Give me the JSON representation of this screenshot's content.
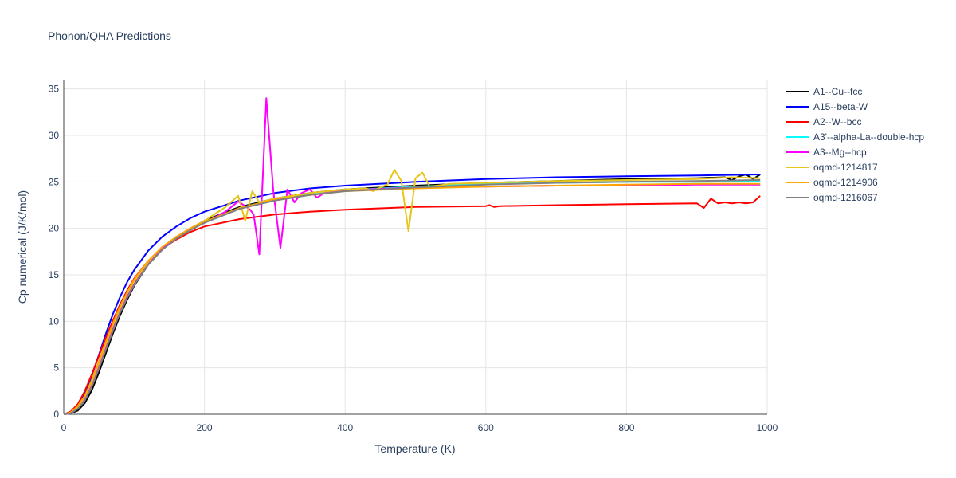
{
  "chart_data": {
    "type": "line",
    "title": "Phonon/QHA Predictions",
    "xlabel": "Temperature (K)",
    "ylabel": "Cp numerical (J/K/mol)",
    "xlim": [
      0,
      1000
    ],
    "ylim": [
      0,
      36
    ],
    "x_ticks": [
      0,
      200,
      400,
      600,
      800,
      1000
    ],
    "y_ticks": [
      0,
      5,
      10,
      15,
      20,
      25,
      30,
      35
    ],
    "grid": true,
    "legend_position": "right",
    "series": [
      {
        "name": "A1--Cu--fcc",
        "color": "#000000",
        "points": [
          [
            0,
            0
          ],
          [
            10,
            0.1
          ],
          [
            20,
            0.4
          ],
          [
            30,
            1.2
          ],
          [
            40,
            2.6
          ],
          [
            50,
            4.5
          ],
          [
            60,
            6.6
          ],
          [
            70,
            8.7
          ],
          [
            80,
            10.6
          ],
          [
            90,
            12.3
          ],
          [
            100,
            13.8
          ],
          [
            120,
            16.1
          ],
          [
            140,
            17.7
          ],
          [
            160,
            19
          ],
          [
            180,
            20
          ],
          [
            200,
            20.8
          ],
          [
            225,
            21.6
          ],
          [
            250,
            22.3
          ],
          [
            300,
            23.2
          ],
          [
            350,
            23.8
          ],
          [
            400,
            24.2
          ],
          [
            500,
            24.6
          ],
          [
            600,
            24.9
          ],
          [
            700,
            25.1
          ],
          [
            800,
            25.3
          ],
          [
            900,
            25.4
          ],
          [
            940,
            25.5
          ],
          [
            950,
            25.2
          ],
          [
            960,
            25.6
          ],
          [
            970,
            25.8
          ],
          [
            980,
            25.3
          ],
          [
            990,
            25.8
          ]
        ]
      },
      {
        "name": "A15--beta-W",
        "color": "#0000ff",
        "points": [
          [
            0,
            0
          ],
          [
            10,
            0.2
          ],
          [
            20,
            0.9
          ],
          [
            30,
            2.2
          ],
          [
            40,
            4.2
          ],
          [
            50,
            6.4
          ],
          [
            60,
            8.7
          ],
          [
            70,
            10.8
          ],
          [
            80,
            12.6
          ],
          [
            90,
            14.2
          ],
          [
            100,
            15.5
          ],
          [
            120,
            17.6
          ],
          [
            140,
            19.1
          ],
          [
            160,
            20.2
          ],
          [
            180,
            21.1
          ],
          [
            200,
            21.8
          ],
          [
            250,
            23
          ],
          [
            300,
            23.8
          ],
          [
            350,
            24.3
          ],
          [
            400,
            24.6
          ],
          [
            500,
            25
          ],
          [
            600,
            25.3
          ],
          [
            700,
            25.5
          ],
          [
            800,
            25.6
          ],
          [
            900,
            25.7
          ],
          [
            990,
            25.8
          ]
        ]
      },
      {
        "name": "A2--W--bcc",
        "color": "#ff0000",
        "points": [
          [
            0,
            0
          ],
          [
            10,
            0.3
          ],
          [
            20,
            1.1
          ],
          [
            30,
            2.5
          ],
          [
            40,
            4.3
          ],
          [
            50,
            6.3
          ],
          [
            60,
            8.3
          ],
          [
            70,
            10.1
          ],
          [
            80,
            11.8
          ],
          [
            90,
            13.3
          ],
          [
            100,
            14.6
          ],
          [
            120,
            16.5
          ],
          [
            140,
            17.8
          ],
          [
            160,
            18.8
          ],
          [
            180,
            19.6
          ],
          [
            200,
            20.2
          ],
          [
            250,
            21
          ],
          [
            300,
            21.5
          ],
          [
            350,
            21.8
          ],
          [
            400,
            22
          ],
          [
            500,
            22.3
          ],
          [
            600,
            22.4
          ],
          [
            605,
            22.5
          ],
          [
            612,
            22.3
          ],
          [
            620,
            22.4
          ],
          [
            700,
            22.5
          ],
          [
            800,
            22.6
          ],
          [
            900,
            22.7
          ],
          [
            910,
            22.2
          ],
          [
            920,
            23.2
          ],
          [
            930,
            22.7
          ],
          [
            940,
            22.8
          ],
          [
            950,
            22.7
          ],
          [
            960,
            22.8
          ],
          [
            970,
            22.7
          ],
          [
            980,
            22.8
          ],
          [
            990,
            23.5
          ]
        ]
      },
      {
        "name": "A3'--alpha-La--double-hcp",
        "color": "#00ffff",
        "points": [
          [
            0,
            0
          ],
          [
            10,
            0.2
          ],
          [
            20,
            0.7
          ],
          [
            30,
            1.7
          ],
          [
            40,
            3.3
          ],
          [
            50,
            5.2
          ],
          [
            60,
            7.3
          ],
          [
            70,
            9.3
          ],
          [
            80,
            11.1
          ],
          [
            90,
            12.7
          ],
          [
            100,
            14
          ],
          [
            120,
            16.2
          ],
          [
            140,
            17.8
          ],
          [
            160,
            19
          ],
          [
            180,
            19.9
          ],
          [
            200,
            20.7
          ],
          [
            250,
            22.2
          ],
          [
            300,
            23.1
          ],
          [
            350,
            23.7
          ],
          [
            400,
            24.1
          ],
          [
            500,
            24.5
          ],
          [
            600,
            24.8
          ],
          [
            700,
            24.9
          ],
          [
            800,
            25
          ],
          [
            900,
            25
          ],
          [
            990,
            25.1
          ]
        ]
      },
      {
        "name": "A3--Mg--hcp",
        "color": "#ff00ff",
        "points": [
          [
            0,
            0
          ],
          [
            10,
            0.1
          ],
          [
            20,
            0.6
          ],
          [
            30,
            1.6
          ],
          [
            40,
            3.2
          ],
          [
            50,
            5.1
          ],
          [
            60,
            7.2
          ],
          [
            70,
            9.2
          ],
          [
            80,
            11
          ],
          [
            90,
            12.6
          ],
          [
            100,
            14
          ],
          [
            120,
            16.2
          ],
          [
            140,
            17.8
          ],
          [
            160,
            19
          ],
          [
            180,
            19.9
          ],
          [
            200,
            20.6
          ],
          [
            230,
            21.8
          ],
          [
            248,
            22.9
          ],
          [
            258,
            22.4
          ],
          [
            265,
            22
          ],
          [
            270,
            21.5
          ],
          [
            278,
            17.2
          ],
          [
            288,
            34
          ],
          [
            298,
            24
          ],
          [
            308,
            17.9
          ],
          [
            318,
            24.2
          ],
          [
            328,
            22.8
          ],
          [
            338,
            23.8
          ],
          [
            350,
            24.2
          ],
          [
            360,
            23.3
          ],
          [
            370,
            23.8
          ],
          [
            400,
            24.1
          ],
          [
            500,
            24.4
          ],
          [
            600,
            24.5
          ],
          [
            700,
            24.6
          ],
          [
            800,
            24.6
          ],
          [
            900,
            24.7
          ],
          [
            990,
            24.7
          ]
        ]
      },
      {
        "name": "oqmd-1214817",
        "color": "#e6c619",
        "points": [
          [
            0,
            0
          ],
          [
            10,
            0.2
          ],
          [
            20,
            0.8
          ],
          [
            30,
            1.9
          ],
          [
            40,
            3.5
          ],
          [
            50,
            5.5
          ],
          [
            60,
            7.6
          ],
          [
            70,
            9.6
          ],
          [
            80,
            11.4
          ],
          [
            90,
            13
          ],
          [
            100,
            14.3
          ],
          [
            120,
            16.4
          ],
          [
            140,
            18
          ],
          [
            160,
            19.1
          ],
          [
            180,
            20
          ],
          [
            200,
            20.8
          ],
          [
            210,
            21.3
          ],
          [
            230,
            22.3
          ],
          [
            248,
            23.5
          ],
          [
            258,
            20.8
          ],
          [
            268,
            24
          ],
          [
            278,
            22.8
          ],
          [
            300,
            23.2
          ],
          [
            350,
            23.8
          ],
          [
            400,
            24.2
          ],
          [
            430,
            24.3
          ],
          [
            440,
            24
          ],
          [
            450,
            24.4
          ],
          [
            460,
            24.7
          ],
          [
            470,
            26.3
          ],
          [
            480,
            25.1
          ],
          [
            490,
            19.7
          ],
          [
            500,
            25.4
          ],
          [
            510,
            26
          ],
          [
            520,
            24.5
          ],
          [
            550,
            24.8
          ],
          [
            600,
            24.9
          ],
          [
            700,
            25.1
          ],
          [
            800,
            25.2
          ],
          [
            900,
            25.3
          ],
          [
            950,
            25.5
          ],
          [
            990,
            25.4
          ]
        ]
      },
      {
        "name": "oqmd-1214906",
        "color": "#ffa500",
        "points": [
          [
            0,
            0
          ],
          [
            10,
            0.2
          ],
          [
            20,
            0.9
          ],
          [
            30,
            2
          ],
          [
            40,
            3.7
          ],
          [
            50,
            5.7
          ],
          [
            60,
            7.8
          ],
          [
            70,
            9.8
          ],
          [
            80,
            11.6
          ],
          [
            90,
            13.1
          ],
          [
            100,
            14.5
          ],
          [
            120,
            16.5
          ],
          [
            140,
            18
          ],
          [
            160,
            19.1
          ],
          [
            180,
            20
          ],
          [
            200,
            20.7
          ],
          [
            250,
            22.2
          ],
          [
            300,
            23.1
          ],
          [
            350,
            23.6
          ],
          [
            400,
            24
          ],
          [
            500,
            24.3
          ],
          [
            600,
            24.5
          ],
          [
            700,
            24.6
          ],
          [
            800,
            24.7
          ],
          [
            900,
            24.8
          ],
          [
            990,
            24.8
          ]
        ]
      },
      {
        "name": "oqmd-1216067",
        "color": "#808080",
        "points": [
          [
            0,
            0
          ],
          [
            10,
            0.1
          ],
          [
            20,
            0.6
          ],
          [
            30,
            1.5
          ],
          [
            40,
            3
          ],
          [
            50,
            4.9
          ],
          [
            60,
            7
          ],
          [
            70,
            9
          ],
          [
            80,
            10.9
          ],
          [
            90,
            12.5
          ],
          [
            100,
            13.9
          ],
          [
            120,
            16.1
          ],
          [
            140,
            17.7
          ],
          [
            160,
            18.9
          ],
          [
            180,
            19.8
          ],
          [
            200,
            20.6
          ],
          [
            250,
            22.1
          ],
          [
            300,
            23
          ],
          [
            350,
            23.6
          ],
          [
            400,
            24
          ],
          [
            500,
            24.4
          ],
          [
            600,
            24.7
          ],
          [
            700,
            24.9
          ],
          [
            800,
            25
          ],
          [
            900,
            25.1
          ],
          [
            990,
            25.2
          ]
        ]
      }
    ]
  }
}
